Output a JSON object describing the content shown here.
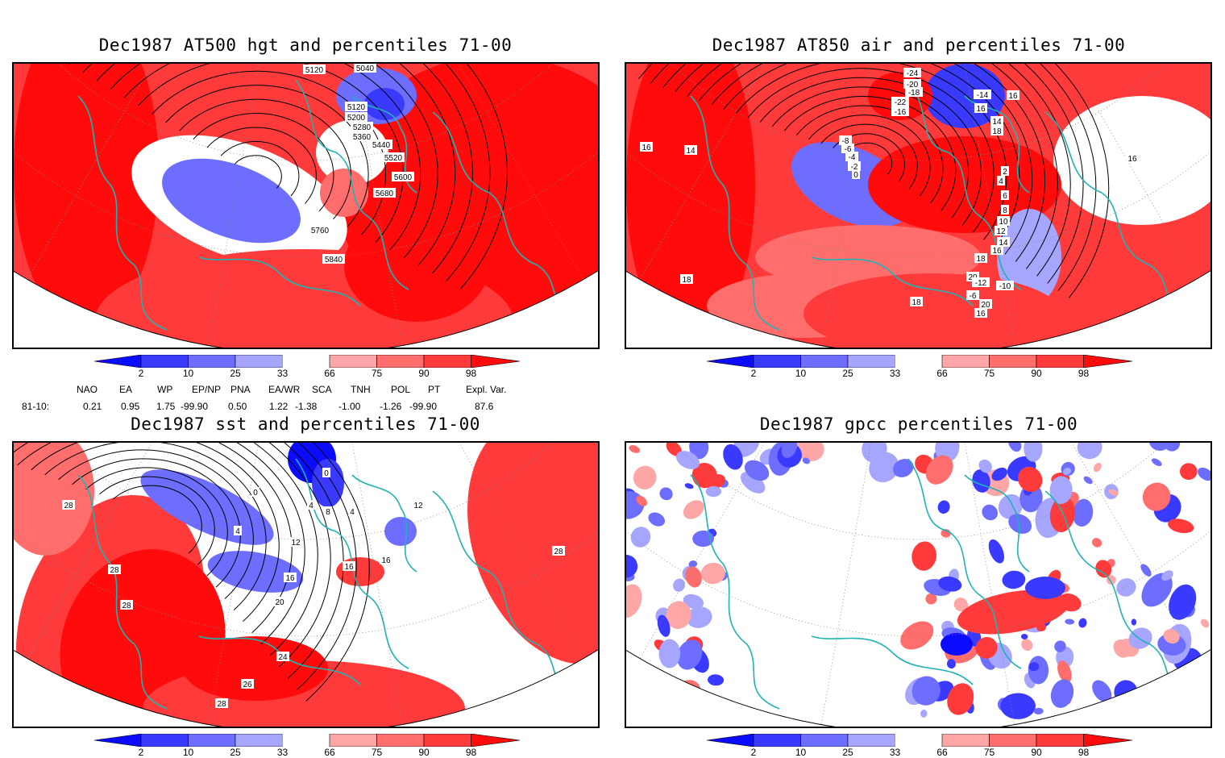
{
  "panels": [
    {
      "id": "tl",
      "title": "Dec1987 AT500 hgt and percentiles 71-00",
      "contour_labels": [
        "5040",
        "5120",
        "5120",
        "5200",
        "5280",
        "5360",
        "5440",
        "5520",
        "5600",
        "5680",
        "5760",
        "5840"
      ]
    },
    {
      "id": "tr",
      "title": "Dec1987 AT850 air and percentiles 71-00",
      "contour_labels": [
        "-24",
        "-20",
        "-18",
        "-14",
        "-22",
        "-16",
        "-8",
        "-6",
        "-4",
        "-2",
        "0",
        "2",
        "4",
        "6",
        "8",
        "10",
        "12",
        "14",
        "16",
        "18",
        "20",
        "-12",
        "-10",
        "-6",
        "16",
        "18",
        "20",
        "16",
        "16",
        "14",
        "18",
        "16",
        "16",
        "14",
        "18"
      ]
    },
    {
      "id": "bl",
      "title": "Dec1987 sst and percentiles 71-00",
      "contour_labels": [
        "28",
        "28",
        "28",
        "0",
        "0",
        "4",
        "4",
        "4",
        "8",
        "12",
        "16",
        "16",
        "16",
        "20",
        "24",
        "26",
        "28",
        "28",
        "12"
      ]
    },
    {
      "id": "br",
      "title": "Dec1987 gpcc percentiles 71-00",
      "contour_labels": []
    }
  ],
  "colorbar": {
    "labels": [
      "2",
      "10",
      "25",
      "33",
      "66",
      "75",
      "90",
      "98"
    ],
    "colors": [
      "#0b0bff",
      "#3a3aff",
      "#6d6dff",
      "#a6a6ff",
      "#ffffff",
      "#ffa6a6",
      "#ff6d6d",
      "#ff3a3a",
      "#ff0b0b"
    ]
  },
  "indices": {
    "headers": [
      "NAO",
      "EA",
      "WP",
      "EP/NP",
      "PNA",
      "EA/WR",
      "SCA",
      "TNH",
      "POL",
      "PT",
      "Expl. Var."
    ],
    "row_label": "81-10:",
    "values": [
      "0.21",
      "0.95",
      "1.75",
      "-99.90",
      "0.50",
      "1.22",
      "-1.38",
      "-1.00",
      "-1.26",
      "-99.90",
      "87.6"
    ]
  }
}
